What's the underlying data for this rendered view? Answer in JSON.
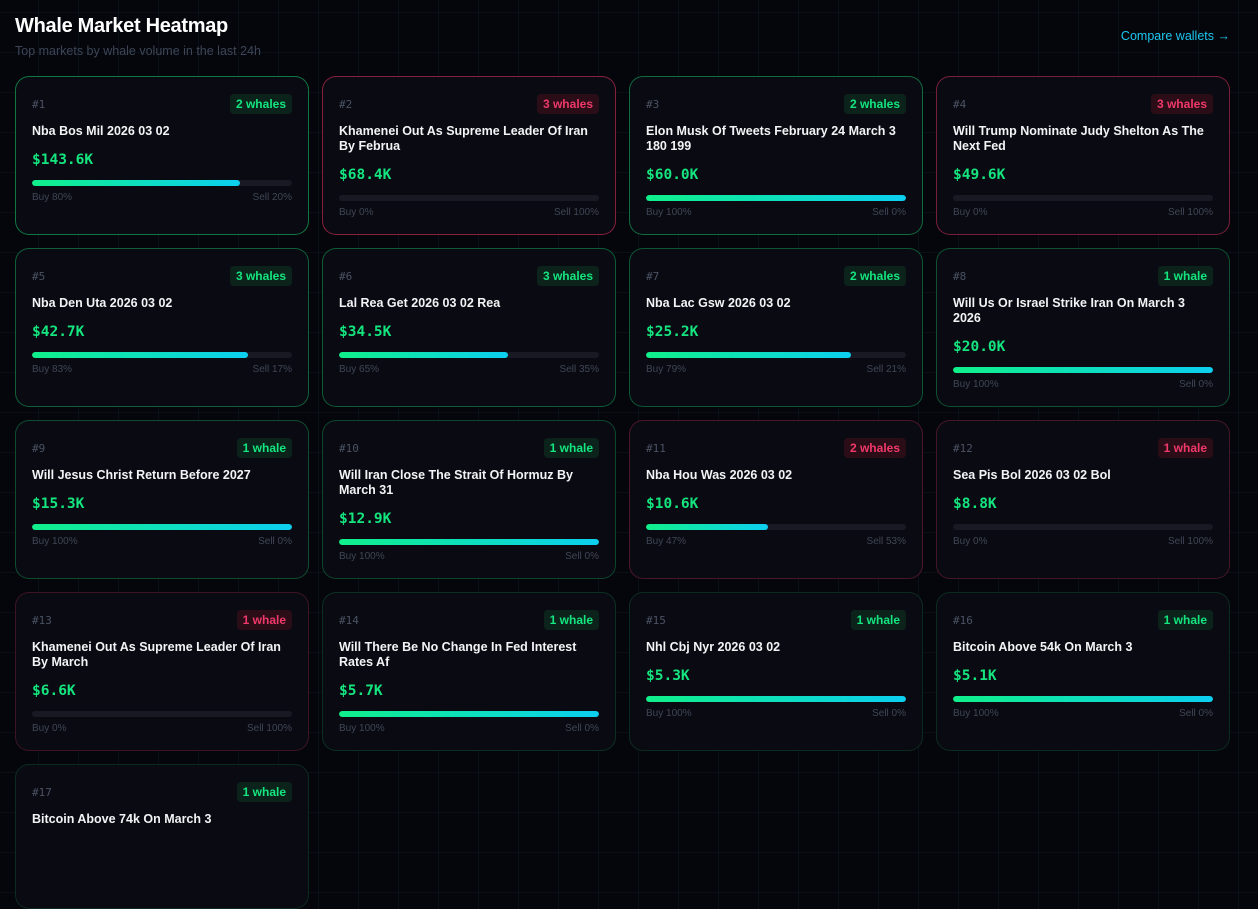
{
  "header": {
    "title": "Whale Market Heatmap",
    "subtitle": "Top markets by whale volume in the last 24h",
    "compare_link": "Compare wallets →"
  },
  "colors": {
    "buy": "#14e57f",
    "sell": "#f0396a",
    "link": "#1cc6f0"
  },
  "markets": [
    {
      "rank": "#1",
      "whales": "2 whales",
      "title": "Nba Bos Mil 2026 03 02",
      "volume": "$143.6K",
      "buy_pct": 80,
      "buy_label": "Buy 80%",
      "sell_label": "Sell 20%"
    },
    {
      "rank": "#2",
      "whales": "3 whales",
      "title": "Khamenei Out As Supreme Leader Of Iran By Februa",
      "volume": "$68.4K",
      "buy_pct": 0,
      "buy_label": "Buy 0%",
      "sell_label": "Sell 100%"
    },
    {
      "rank": "#3",
      "whales": "2 whales",
      "title": "Elon Musk Of Tweets February 24 March 3 180 199",
      "volume": "$60.0K",
      "buy_pct": 100,
      "buy_label": "Buy 100%",
      "sell_label": "Sell 0%"
    },
    {
      "rank": "#4",
      "whales": "3 whales",
      "title": "Will Trump Nominate Judy Shelton As The Next Fed",
      "volume": "$49.6K",
      "buy_pct": 0,
      "buy_label": "Buy 0%",
      "sell_label": "Sell 100%"
    },
    {
      "rank": "#5",
      "whales": "3 whales",
      "title": "Nba Den Uta 2026 03 02",
      "volume": "$42.7K",
      "buy_pct": 83,
      "buy_label": "Buy 83%",
      "sell_label": "Sell 17%"
    },
    {
      "rank": "#6",
      "whales": "3 whales",
      "title": "Lal Rea Get 2026 03 02 Rea",
      "volume": "$34.5K",
      "buy_pct": 65,
      "buy_label": "Buy 65%",
      "sell_label": "Sell 35%"
    },
    {
      "rank": "#7",
      "whales": "2 whales",
      "title": "Nba Lac Gsw 2026 03 02",
      "volume": "$25.2K",
      "buy_pct": 79,
      "buy_label": "Buy 79%",
      "sell_label": "Sell 21%"
    },
    {
      "rank": "#8",
      "whales": "1 whale",
      "title": "Will Us Or Israel Strike Iran On March 3 2026",
      "volume": "$20.0K",
      "buy_pct": 100,
      "buy_label": "Buy 100%",
      "sell_label": "Sell 0%"
    },
    {
      "rank": "#9",
      "whales": "1 whale",
      "title": "Will Jesus Christ Return Before 2027",
      "volume": "$15.3K",
      "buy_pct": 100,
      "buy_label": "Buy 100%",
      "sell_label": "Sell 0%"
    },
    {
      "rank": "#10",
      "whales": "1 whale",
      "title": "Will Iran Close The Strait Of Hormuz By March 31",
      "volume": "$12.9K",
      "buy_pct": 100,
      "buy_label": "Buy 100%",
      "sell_label": "Sell 0%"
    },
    {
      "rank": "#11",
      "whales": "2 whales",
      "title": "Nba Hou Was 2026 03 02",
      "volume": "$10.6K",
      "buy_pct": 47,
      "buy_label": "Buy 47%",
      "sell_label": "Sell 53%"
    },
    {
      "rank": "#12",
      "whales": "1 whale",
      "title": "Sea Pis Bol 2026 03 02 Bol",
      "volume": "$8.8K",
      "buy_pct": 0,
      "buy_label": "Buy 0%",
      "sell_label": "Sell 100%"
    },
    {
      "rank": "#13",
      "whales": "1 whale",
      "title": "Khamenei Out As Supreme Leader Of Iran By March",
      "volume": "$6.6K",
      "buy_pct": 0,
      "buy_label": "Buy 0%",
      "sell_label": "Sell 100%"
    },
    {
      "rank": "#14",
      "whales": "1 whale",
      "title": "Will There Be No Change In Fed Interest Rates Af",
      "volume": "$5.7K",
      "buy_pct": 100,
      "buy_label": "Buy 100%",
      "sell_label": "Sell 0%"
    },
    {
      "rank": "#15",
      "whales": "1 whale",
      "title": "Nhl Cbj Nyr 2026 03 02",
      "volume": "$5.3K",
      "buy_pct": 100,
      "buy_label": "Buy 100%",
      "sell_label": "Sell 0%"
    },
    {
      "rank": "#16",
      "whales": "1 whale",
      "title": "Bitcoin Above 54k On March 3",
      "volume": "$5.1K",
      "buy_pct": 100,
      "buy_label": "Buy 100%",
      "sell_label": "Sell 0%"
    },
    {
      "rank": "#17",
      "whales": "1 whale",
      "title": "Bitcoin Above 74k On March 3"
    }
  ]
}
